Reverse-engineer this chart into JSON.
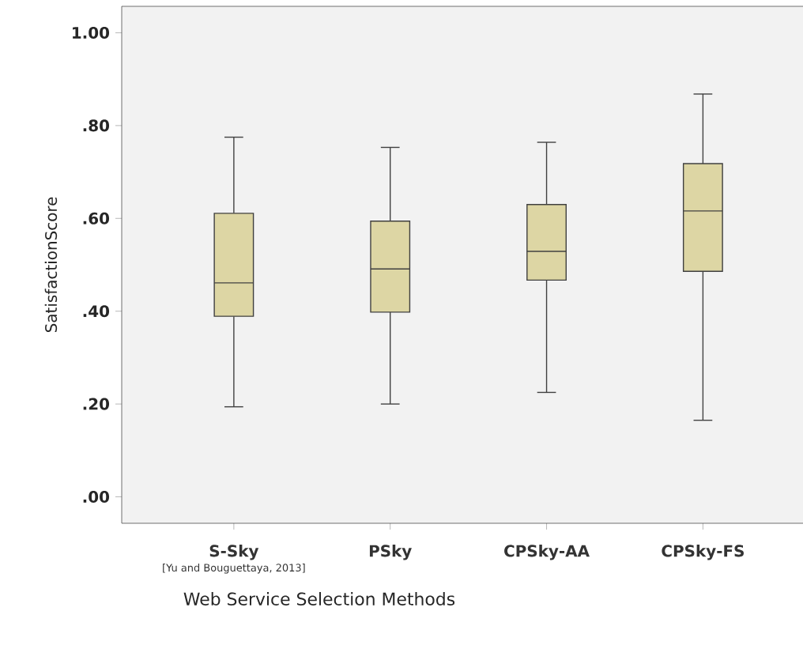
{
  "chart_data": {
    "type": "box",
    "categories": [
      "S-Sky",
      "PSky",
      "CPSky-AA",
      "CPSky-FS"
    ],
    "boxes": [
      {
        "low": 0.194,
        "q1": 0.389,
        "median": 0.461,
        "q3": 0.611,
        "high": 0.775
      },
      {
        "low": 0.2,
        "q1": 0.398,
        "median": 0.491,
        "q3": 0.594,
        "high": 0.753
      },
      {
        "low": 0.225,
        "q1": 0.467,
        "median": 0.529,
        "q3": 0.63,
        "high": 0.764
      },
      {
        "low": 0.165,
        "q1": 0.486,
        "median": 0.616,
        "q3": 0.718,
        "high": 0.868
      }
    ],
    "color": "#ddd6a4",
    "ylim": [
      -0.057,
      1.057
    ],
    "yticks": [
      {
        "value": 0,
        "label": ".00"
      },
      {
        "value": 0.2,
        "label": ".20"
      },
      {
        "value": 0.4,
        "label": ".40"
      },
      {
        "value": 0.6,
        "label": ".60"
      },
      {
        "value": 0.8,
        "label": ".80"
      },
      {
        "value": 1,
        "label": "1.00"
      }
    ],
    "xlabel": "Web Service Selection Methods",
    "ylabel": "SatisfactionScore",
    "annotations": [
      "[Yu and Bouguettaya, 2013]"
    ],
    "grid": false
  }
}
